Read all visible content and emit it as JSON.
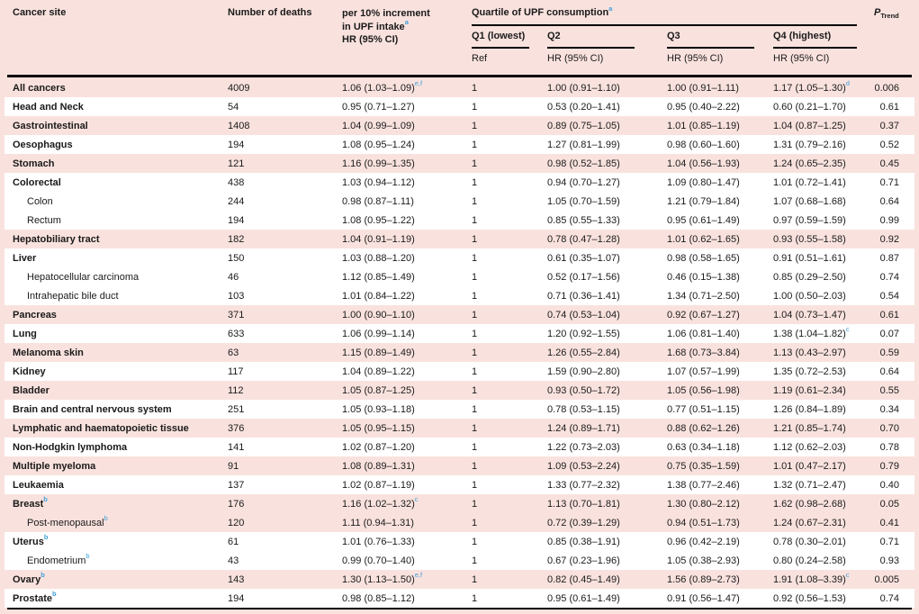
{
  "colors": {
    "band_pink": "#f9e2de",
    "band_white": "#ffffff",
    "footnote_blue": "#3fa0d8",
    "rule_black": "#000000"
  },
  "header": {
    "cancer_site": "Cancer site",
    "deaths": "Number of deaths",
    "per10": {
      "line1": "per 10% increment",
      "line2": "in UPF intake",
      "sup": "a",
      "line3": "HR (95% CI)"
    },
    "quartile": {
      "label": "Quartile of UPF consumption",
      "sup": "a"
    },
    "q1": {
      "label": "Q1 (lowest)",
      "sub": "Ref"
    },
    "q2": {
      "label": "Q2",
      "sub": "HR (95% CI)"
    },
    "q3": {
      "label": "Q3",
      "sub": "HR (95% CI)"
    },
    "q4": {
      "label": "Q4 (highest)",
      "sub": "HR (95% CI)"
    },
    "ptrend": {
      "p": "P",
      "sub": "Trend"
    }
  },
  "rows": [
    {
      "site": "All cancers",
      "site_sup": "",
      "indent": false,
      "band": "pink",
      "deaths": "4009",
      "hr": "1.06 (1.03–1.09)",
      "hr_sup": "e,f",
      "q1": "1",
      "q2": "1.00 (0.91–1.10)",
      "q3": "1.00 (0.91–1.11)",
      "q4": "1.17 (1.05–1.30)",
      "q4_sup": "d",
      "p": "0.006"
    },
    {
      "site": "Head and Neck",
      "site_sup": "",
      "indent": false,
      "band": "white",
      "deaths": "54",
      "hr": "0.95 (0.71–1.27)",
      "hr_sup": "",
      "q1": "1",
      "q2": "0.53 (0.20–1.41)",
      "q3": "0.95 (0.40–2.22)",
      "q4": "0.60 (0.21–1.70)",
      "q4_sup": "",
      "p": "0.61"
    },
    {
      "site": "Gastrointestinal",
      "site_sup": "",
      "indent": false,
      "band": "pink",
      "deaths": "1408",
      "hr": "1.04 (0.99–1.09)",
      "hr_sup": "",
      "q1": "1",
      "q2": "0.89 (0.75–1.05)",
      "q3": "1.01 (0.85–1.19)",
      "q4": "1.04 (0.87–1.25)",
      "q4_sup": "",
      "p": "0.37"
    },
    {
      "site": "Oesophagus",
      "site_sup": "",
      "indent": false,
      "band": "white",
      "deaths": "194",
      "hr": "1.08 (0.95–1.24)",
      "hr_sup": "",
      "q1": "1",
      "q2": "1.27 (0.81–1.99)",
      "q3": "0.98 (0.60–1.60)",
      "q4": "1.31 (0.79–2.16)",
      "q4_sup": "",
      "p": "0.52"
    },
    {
      "site": "Stomach",
      "site_sup": "",
      "indent": false,
      "band": "pink",
      "deaths": "121",
      "hr": "1.16 (0.99–1.35)",
      "hr_sup": "",
      "q1": "1",
      "q2": "0.98 (0.52–1.85)",
      "q3": "1.04 (0.56–1.93)",
      "q4": "1.24 (0.65–2.35)",
      "q4_sup": "",
      "p": "0.45"
    },
    {
      "site": "Colorectal",
      "site_sup": "",
      "indent": false,
      "band": "white",
      "deaths": "438",
      "hr": "1.03 (0.94–1.12)",
      "hr_sup": "",
      "q1": "1",
      "q2": "0.94 (0.70–1.27)",
      "q3": "1.09 (0.80–1.47)",
      "q4": "1.01 (0.72–1.41)",
      "q4_sup": "",
      "p": "0.71"
    },
    {
      "site": "Colon",
      "site_sup": "",
      "indent": true,
      "band": "white",
      "deaths": "244",
      "hr": "0.98 (0.87–1.11)",
      "hr_sup": "",
      "q1": "1",
      "q2": "1.05 (0.70–1.59)",
      "q3": "1.21 (0.79–1.84)",
      "q4": "1.07 (0.68–1.68)",
      "q4_sup": "",
      "p": "0.64"
    },
    {
      "site": "Rectum",
      "site_sup": "",
      "indent": true,
      "band": "white",
      "deaths": "194",
      "hr": "1.08 (0.95–1.22)",
      "hr_sup": "",
      "q1": "1",
      "q2": "0.85 (0.55–1.33)",
      "q3": "0.95 (0.61–1.49)",
      "q4": "0.97 (0.59–1.59)",
      "q4_sup": "",
      "p": "0.99"
    },
    {
      "site": "Hepatobiliary tract",
      "site_sup": "",
      "indent": false,
      "band": "pink",
      "deaths": "182",
      "hr": "1.04 (0.91–1.19)",
      "hr_sup": "",
      "q1": "1",
      "q2": "0.78 (0.47–1.28)",
      "q3": "1.01 (0.62–1.65)",
      "q4": "0.93 (0.55–1.58)",
      "q4_sup": "",
      "p": "0.92"
    },
    {
      "site": "Liver",
      "site_sup": "",
      "indent": false,
      "band": "white",
      "deaths": "150",
      "hr": "1.03 (0.88–1.20)",
      "hr_sup": "",
      "q1": "1",
      "q2": "0.61 (0.35–1.07)",
      "q3": "0.98 (0.58–1.65)",
      "q4": "0.91 (0.51–1.61)",
      "q4_sup": "",
      "p": "0.87"
    },
    {
      "site": "Hepatocellular carcinoma",
      "site_sup": "",
      "indent": true,
      "band": "white",
      "deaths": "46",
      "hr": "1.12 (0.85–1.49)",
      "hr_sup": "",
      "q1": "1",
      "q2": "0.52 (0.17–1.56)",
      "q3": "0.46 (0.15–1.38)",
      "q4": "0.85 (0.29–2.50)",
      "q4_sup": "",
      "p": "0.74"
    },
    {
      "site": "Intrahepatic bile duct",
      "site_sup": "",
      "indent": true,
      "band": "white",
      "deaths": "103",
      "hr": "1.01 (0.84–1.22)",
      "hr_sup": "",
      "q1": "1",
      "q2": "0.71 (0.36–1.41)",
      "q3": "1.34 (0.71–2.50)",
      "q4": "1.00 (0.50–2.03)",
      "q4_sup": "",
      "p": "0.54"
    },
    {
      "site": "Pancreas",
      "site_sup": "",
      "indent": false,
      "band": "pink",
      "deaths": "371",
      "hr": "1.00 (0.90–1.10)",
      "hr_sup": "",
      "q1": "1",
      "q2": "0.74 (0.53–1.04)",
      "q3": "0.92 (0.67–1.27)",
      "q4": "1.04 (0.73–1.47)",
      "q4_sup": "",
      "p": "0.61"
    },
    {
      "site": "Lung",
      "site_sup": "",
      "indent": false,
      "band": "white",
      "deaths": "633",
      "hr": "1.06 (0.99–1.14)",
      "hr_sup": "",
      "q1": "1",
      "q2": "1.20 (0.92–1.55)",
      "q3": "1.06 (0.81–1.40)",
      "q4": "1.38 (1.04–1.82)",
      "q4_sup": "c",
      "p": "0.07"
    },
    {
      "site": "Melanoma skin",
      "site_sup": "",
      "indent": false,
      "band": "pink",
      "deaths": "63",
      "hr": "1.15 (0.89–1.49)",
      "hr_sup": "",
      "q1": "1",
      "q2": "1.26 (0.55–2.84)",
      "q3": "1.68 (0.73–3.84)",
      "q4": "1.13 (0.43–2.97)",
      "q4_sup": "",
      "p": "0.59"
    },
    {
      "site": "Kidney",
      "site_sup": "",
      "indent": false,
      "band": "white",
      "deaths": "117",
      "hr": "1.04 (0.89–1.22)",
      "hr_sup": "",
      "q1": "1",
      "q2": "1.59 (0.90–2.80)",
      "q3": "1.07 (0.57–1.99)",
      "q4": "1.35 (0.72–2.53)",
      "q4_sup": "",
      "p": "0.64"
    },
    {
      "site": "Bladder",
      "site_sup": "",
      "indent": false,
      "band": "pink",
      "deaths": "112",
      "hr": "1.05 (0.87–1.25)",
      "hr_sup": "",
      "q1": "1",
      "q2": "0.93 (0.50–1.72)",
      "q3": "1.05 (0.56–1.98)",
      "q4": "1.19 (0.61–2.34)",
      "q4_sup": "",
      "p": "0.55"
    },
    {
      "site": "Brain and central nervous system",
      "site_sup": "",
      "indent": false,
      "band": "white",
      "deaths": "251",
      "hr": "1.05 (0.93–1.18)",
      "hr_sup": "",
      "q1": "1",
      "q2": "0.78 (0.53–1.15)",
      "q3": "0.77 (0.51–1.15)",
      "q4": "1.26 (0.84–1.89)",
      "q4_sup": "",
      "p": "0.34"
    },
    {
      "site": "Lymphatic and haematopoietic tissue",
      "site_sup": "",
      "indent": false,
      "band": "pink",
      "deaths": "376",
      "hr": "1.05 (0.95–1.15)",
      "hr_sup": "",
      "q1": "1",
      "q2": "1.24 (0.89–1.71)",
      "q3": "0.88 (0.62–1.26)",
      "q4": "1.21 (0.85–1.74)",
      "q4_sup": "",
      "p": "0.70"
    },
    {
      "site": "Non-Hodgkin lymphoma",
      "site_sup": "",
      "indent": false,
      "band": "white",
      "deaths": "141",
      "hr": "1.02 (0.87–1.20)",
      "hr_sup": "",
      "q1": "1",
      "q2": "1.22 (0.73–2.03)",
      "q3": "0.63 (0.34–1.18)",
      "q4": "1.12 (0.62–2.03)",
      "q4_sup": "",
      "p": "0.78"
    },
    {
      "site": "Multiple myeloma",
      "site_sup": "",
      "indent": false,
      "band": "pink",
      "deaths": "91",
      "hr": "1.08 (0.89–1.31)",
      "hr_sup": "",
      "q1": "1",
      "q2": "1.09 (0.53–2.24)",
      "q3": "0.75 (0.35–1.59)",
      "q4": "1.01 (0.47–2.17)",
      "q4_sup": "",
      "p": "0.79"
    },
    {
      "site": "Leukaemia",
      "site_sup": "",
      "indent": false,
      "band": "white",
      "deaths": "137",
      "hr": "1.02 (0.87–1.19)",
      "hr_sup": "",
      "q1": "1",
      "q2": "1.33 (0.77–2.32)",
      "q3": "1.38 (0.77–2.46)",
      "q4": "1.32 (0.71–2.47)",
      "q4_sup": "",
      "p": "0.40"
    },
    {
      "site": "Breast",
      "site_sup": "b",
      "indent": false,
      "band": "pink",
      "deaths": "176",
      "hr": "1.16 (1.02–1.32)",
      "hr_sup": "c",
      "q1": "1",
      "q2": "1.13 (0.70–1.81)",
      "q3": "1.30 (0.80–2.12)",
      "q4": "1.62 (0.98–2.68)",
      "q4_sup": "",
      "p": "0.05"
    },
    {
      "site": "Post-menopausal",
      "site_sup": "b",
      "indent": true,
      "band": "pink",
      "deaths": "120",
      "hr": "1.11 (0.94–1.31)",
      "hr_sup": "",
      "q1": "1",
      "q2": "0.72 (0.39–1.29)",
      "q3": "0.94 (0.51–1.73)",
      "q4": "1.24 (0.67–2.31)",
      "q4_sup": "",
      "p": "0.41"
    },
    {
      "site": "Uterus",
      "site_sup": "b",
      "indent": false,
      "band": "white",
      "deaths": "61",
      "hr": "1.01 (0.76–1.33)",
      "hr_sup": "",
      "q1": "1",
      "q2": "0.85 (0.38–1.91)",
      "q3": "0.96 (0.42–2.19)",
      "q4": "0.78 (0.30–2.01)",
      "q4_sup": "",
      "p": "0.71"
    },
    {
      "site": "Endometrium",
      "site_sup": "b",
      "indent": true,
      "band": "white",
      "deaths": "43",
      "hr": "0.99 (0.70–1.40)",
      "hr_sup": "",
      "q1": "1",
      "q2": "0.67 (0.23–1.96)",
      "q3": "1.05 (0.38–2.93)",
      "q4": "0.80 (0.24–2.58)",
      "q4_sup": "",
      "p": "0.93"
    },
    {
      "site": "Ovary",
      "site_sup": "b",
      "indent": false,
      "band": "pink",
      "deaths": "143",
      "hr": "1.30 (1.13–1.50)",
      "hr_sup": "e,f",
      "q1": "1",
      "q2": "0.82 (0.45–1.49)",
      "q3": "1.56 (0.89–2.73)",
      "q4": "1.91 (1.08–3.39)",
      "q4_sup": "c",
      "p": "0.005"
    },
    {
      "site": "Prostate",
      "site_sup": "b",
      "indent": false,
      "band": "white",
      "deaths": "194",
      "hr": "0.98 (0.85–1.12)",
      "hr_sup": "",
      "q1": "1",
      "q2": "0.95 (0.61–1.49)",
      "q3": "0.91 (0.56–1.47)",
      "q4": "0.92 (0.56–1.53)",
      "q4_sup": "",
      "p": "0.74"
    }
  ]
}
